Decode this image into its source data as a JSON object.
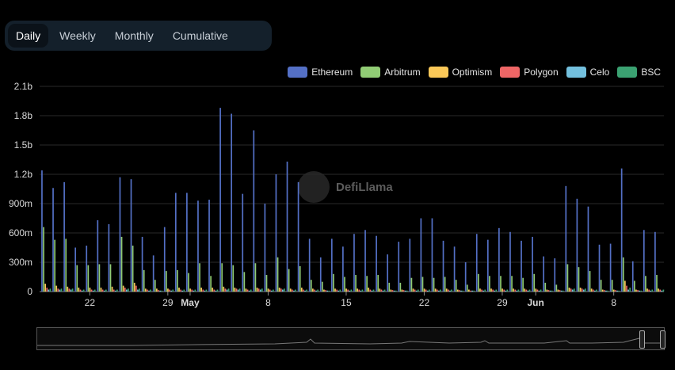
{
  "tabs": [
    {
      "label": "Daily",
      "active": true
    },
    {
      "label": "Weekly",
      "active": false
    },
    {
      "label": "Monthly",
      "active": false
    },
    {
      "label": "Cumulative",
      "active": false
    }
  ],
  "watermark": "DefiLlama",
  "legend": [
    {
      "name": "Ethereum",
      "color": "#5470c6"
    },
    {
      "name": "Arbitrum",
      "color": "#91cc75"
    },
    {
      "name": "Optimism",
      "color": "#fac858"
    },
    {
      "name": "Polygon",
      "color": "#ee6666"
    },
    {
      "name": "Celo",
      "color": "#73c0de"
    },
    {
      "name": "BSC",
      "color": "#3ba272"
    }
  ],
  "chart_data": {
    "type": "bar",
    "yticks": [
      "0",
      "300m",
      "600m",
      "900m",
      "1.2b",
      "1.5b",
      "1.8b",
      "2.1b"
    ],
    "ylim": [
      0,
      2100
    ],
    "yunit": "millions",
    "xtick_labels": [
      {
        "label": "22",
        "day": 4,
        "bold": false
      },
      {
        "label": "29",
        "day": 11,
        "bold": false
      },
      {
        "label": "May",
        "day": 13,
        "bold": true
      },
      {
        "label": "8",
        "day": 20,
        "bold": false
      },
      {
        "label": "15",
        "day": 27,
        "bold": false
      },
      {
        "label": "22",
        "day": 34,
        "bold": false
      },
      {
        "label": "29",
        "day": 41,
        "bold": false
      },
      {
        "label": "Jun",
        "day": 44,
        "bold": true
      },
      {
        "label": "8",
        "day": 51,
        "bold": false
      }
    ],
    "days": 56,
    "series": [
      {
        "name": "Ethereum",
        "values": [
          1240,
          1060,
          1120,
          450,
          470,
          730,
          690,
          1170,
          1150,
          560,
          370,
          660,
          1010,
          1010,
          930,
          940,
          1880,
          1820,
          1000,
          1650,
          900,
          1200,
          1330,
          1120,
          540,
          350,
          540,
          460,
          590,
          630,
          570,
          380,
          510,
          540,
          750,
          750,
          520,
          460,
          300,
          590,
          530,
          650,
          610,
          520,
          560,
          360,
          340,
          1080,
          950,
          870,
          480,
          490,
          1260,
          310,
          630,
          610
        ]
      },
      {
        "name": "Arbitrum",
        "values": [
          660,
          530,
          540,
          270,
          270,
          280,
          280,
          560,
          470,
          220,
          120,
          210,
          220,
          190,
          290,
          160,
          290,
          270,
          200,
          290,
          170,
          350,
          230,
          260,
          120,
          100,
          180,
          150,
          170,
          160,
          170,
          90,
          90,
          140,
          150,
          140,
          150,
          120,
          70,
          180,
          160,
          160,
          160,
          140,
          180,
          90,
          70,
          280,
          250,
          210,
          120,
          120,
          350,
          110,
          160,
          170
        ]
      },
      {
        "name": "Optimism",
        "values": [
          80,
          60,
          50,
          40,
          40,
          40,
          50,
          60,
          90,
          30,
          30,
          30,
          40,
          30,
          40,
          40,
          50,
          40,
          30,
          40,
          30,
          40,
          30,
          40,
          30,
          20,
          30,
          30,
          30,
          40,
          30,
          20,
          20,
          30,
          30,
          30,
          30,
          20,
          20,
          30,
          30,
          30,
          30,
          30,
          30,
          20,
          20,
          40,
          40,
          30,
          20,
          20,
          110,
          20,
          30,
          30
        ]
      },
      {
        "name": "Polygon",
        "values": [
          40,
          30,
          30,
          20,
          20,
          20,
          20,
          40,
          60,
          20,
          15,
          20,
          20,
          20,
          20,
          20,
          30,
          30,
          20,
          30,
          20,
          30,
          20,
          20,
          20,
          15,
          20,
          20,
          20,
          20,
          20,
          15,
          15,
          20,
          20,
          20,
          20,
          15,
          10,
          20,
          20,
          20,
          20,
          20,
          20,
          15,
          15,
          30,
          30,
          20,
          15,
          15,
          60,
          15,
          20,
          20
        ]
      },
      {
        "name": "Celo",
        "values": [
          20,
          20,
          20,
          10,
          10,
          10,
          10,
          20,
          20,
          10,
          10,
          10,
          10,
          10,
          10,
          10,
          20,
          20,
          10,
          20,
          10,
          20,
          10,
          10,
          10,
          10,
          10,
          10,
          10,
          10,
          10,
          10,
          10,
          10,
          10,
          10,
          10,
          10,
          10,
          10,
          10,
          10,
          10,
          10,
          10,
          10,
          10,
          20,
          20,
          10,
          10,
          10,
          20,
          10,
          10,
          10
        ]
      },
      {
        "name": "BSC",
        "values": [
          30,
          30,
          30,
          20,
          20,
          20,
          20,
          30,
          30,
          20,
          10,
          20,
          20,
          20,
          20,
          20,
          30,
          30,
          20,
          30,
          20,
          30,
          20,
          20,
          20,
          10,
          20,
          20,
          20,
          20,
          20,
          10,
          10,
          20,
          20,
          20,
          20,
          10,
          10,
          20,
          20,
          20,
          20,
          20,
          20,
          10,
          10,
          30,
          30,
          20,
          10,
          10,
          40,
          10,
          20,
          20
        ]
      }
    ],
    "grid": true,
    "legend_position": "top-right"
  }
}
